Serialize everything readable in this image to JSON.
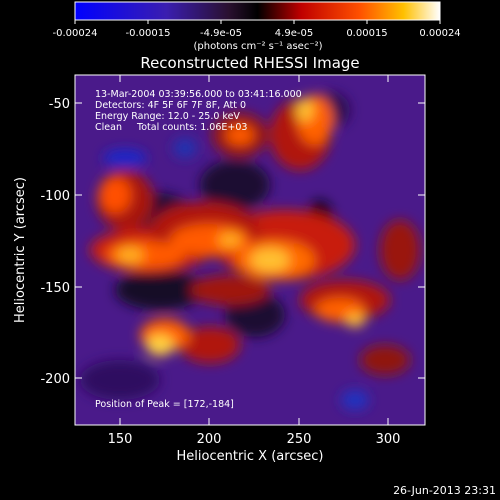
{
  "colorbar": {
    "tick_labels": [
      "-0.00024",
      "-0.00015",
      "-4.9e-05",
      "4.9e-05",
      "0.00015",
      "0.00024"
    ],
    "units_label": "(photons cm⁻² s⁻¹ asec⁻²)"
  },
  "plot": {
    "title": "Reconstructed RHESSI Image",
    "xlabel": "Heliocentric X (arcsec)",
    "ylabel": "Heliocentric Y (arcsec)",
    "x_ticks": [
      "150",
      "200",
      "250",
      "300"
    ],
    "y_ticks": [
      "-50",
      "-100",
      "-150",
      "-200"
    ],
    "xlim": [
      125,
      320
    ],
    "ylim": [
      -225,
      -35
    ],
    "info_lines": [
      "13-Mar-2004 03:39:56.000 to 03:41:16.000",
      "Detectors: 4F 5F 6F 7F 8F, Att 0",
      "Energy Range: 12.0 - 25.0 keV",
      "Clean     Total counts: 1.06E+03"
    ],
    "peak_label": "Position of Peak = [172,-184]"
  },
  "footer": {
    "timestamp": "26-Jun-2013 23:31"
  },
  "colors": {
    "background": "#000000",
    "text": "#ffffff"
  }
}
